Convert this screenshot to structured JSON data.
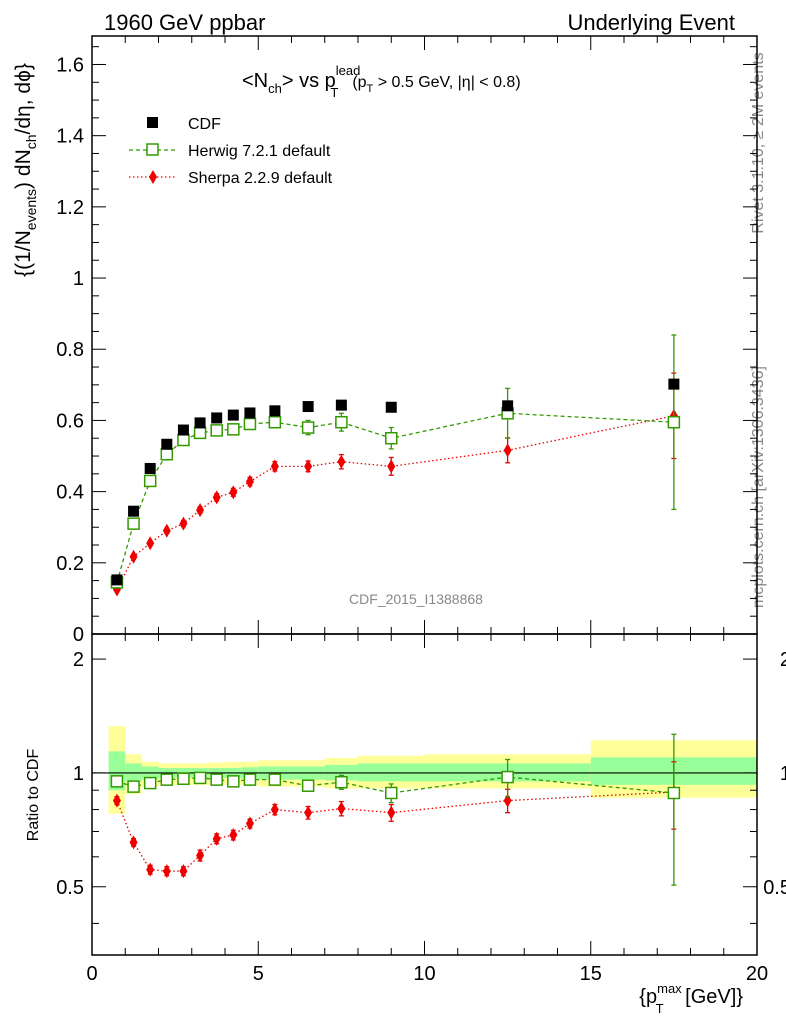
{
  "header": {
    "left": "1960 GeV ppbar",
    "right": "Underlying Event"
  },
  "side": {
    "top": "Rivet 3.1.10, ≥ 2M events",
    "bottom": "mcplots.cern.ch [arXiv:1306.3436]"
  },
  "watermark": "CDF_2015_I1388868",
  "main_title": {
    "part1": "<N",
    "sub1": "ch",
    "part2": "> vs p",
    "sup2": "lead",
    "sub2": "T",
    "paren_open": "(p",
    "sub3": "T",
    "paren_rest": " > 0.5 GeV, |η| < 0.8)"
  },
  "ylabel": {
    "p1": "{(1/N",
    "s1": "events",
    "p2": ") dN",
    "s2": "ch",
    "p3": "/dη, dϕ}"
  },
  "ratio_ylabel": "Ratio to CDF",
  "xlabel": {
    "p1": "{p",
    "sup": "max",
    "sub": "T",
    "p2": " [GeV]}"
  },
  "legend": [
    {
      "name": "CDF"
    },
    {
      "name": "Herwig 7.2.1 default"
    },
    {
      "name": "Sherpa 2.2.9 default"
    }
  ],
  "colors": {
    "cdf": "#000000",
    "herwig": "#339900",
    "sherpa": "#ee0000",
    "band_inner": "#99ff99",
    "band_outer": "#ffff99"
  },
  "chart_data": [
    {
      "type": "scatter",
      "xlim": [
        0,
        20
      ],
      "ylim": [
        0,
        1.68
      ],
      "yticks": [
        0,
        0.2,
        0.4,
        0.6,
        0.8,
        1,
        1.2,
        1.4,
        1.6
      ],
      "ytick_labels": [
        "0",
        "0.2",
        "0.4",
        "0.6",
        "0.8",
        "1",
        "1.2",
        "1.4",
        "1.6"
      ],
      "xticks": [
        0,
        5,
        10,
        15,
        20
      ],
      "xtick_labels": [
        "0",
        "5",
        "10",
        "15",
        "20"
      ],
      "x": [
        0.75,
        1.25,
        1.75,
        2.25,
        2.75,
        3.25,
        3.75,
        4.25,
        4.75,
        5.5,
        6.5,
        7.5,
        9,
        12.5,
        17.5
      ],
      "series": [
        {
          "name": "CDF",
          "y": [
            0.152,
            0.345,
            0.465,
            0.533,
            0.573,
            0.593,
            0.607,
            0.615,
            0.621,
            0.627,
            0.639,
            0.643,
            0.637,
            0.641,
            0.702
          ],
          "err": [
            0.005,
            0.005,
            0.005,
            0.005,
            0.005,
            0.005,
            0.005,
            0.005,
            0.005,
            0.005,
            0.005,
            0.006,
            0.006,
            0.008,
            0.012
          ]
        },
        {
          "name": "Herwig 7.2.1 default",
          "y": [
            0.145,
            0.31,
            0.43,
            0.505,
            0.545,
            0.565,
            0.572,
            0.575,
            0.59,
            0.595,
            0.58,
            0.595,
            0.55,
            0.62,
            0.595
          ],
          "err": [
            0.006,
            0.008,
            0.01,
            0.01,
            0.01,
            0.011,
            0.012,
            0.013,
            0.014,
            0.015,
            0.02,
            0.025,
            0.03,
            0.07,
            0.245
          ]
        },
        {
          "name": "Sherpa 2.2.9 default",
          "y": [
            0.125,
            0.217,
            0.255,
            0.29,
            0.31,
            0.348,
            0.384,
            0.398,
            0.428,
            0.471,
            0.471,
            0.484,
            0.471,
            0.516,
            0.613
          ],
          "err": [
            0.004,
            0.005,
            0.006,
            0.007,
            0.008,
            0.009,
            0.01,
            0.011,
            0.012,
            0.013,
            0.015,
            0.02,
            0.025,
            0.035,
            0.12
          ]
        }
      ]
    },
    {
      "type": "scatter",
      "ylabel": "Ratio to CDF",
      "xlim": [
        0,
        20
      ],
      "ylim": [
        0.33,
        2.33
      ],
      "log_y": true,
      "yticks": [
        0.5,
        1,
        2
      ],
      "ytick_labels": [
        "0.5",
        "1",
        "2"
      ],
      "bins": [
        [
          0.5,
          1.0
        ],
        [
          1.0,
          1.5
        ],
        [
          1.5,
          2.0
        ],
        [
          2.0,
          2.5
        ],
        [
          2.5,
          3.0
        ],
        [
          3.0,
          3.5
        ],
        [
          3.5,
          4.0
        ],
        [
          4.0,
          4.5
        ],
        [
          4.5,
          5.0
        ],
        [
          5.0,
          6.0
        ],
        [
          6.0,
          7.0
        ],
        [
          7.0,
          8.0
        ],
        [
          8.0,
          10.0
        ],
        [
          10.0,
          15.0
        ],
        [
          15.0,
          20.0
        ]
      ],
      "band_inner": [
        [
          0.9,
          1.14
        ],
        [
          0.95,
          1.06
        ],
        [
          0.96,
          1.04
        ],
        [
          0.97,
          1.03
        ],
        [
          0.97,
          1.03
        ],
        [
          0.97,
          1.03
        ],
        [
          0.97,
          1.03
        ],
        [
          0.97,
          1.03
        ],
        [
          0.965,
          1.035
        ],
        [
          0.96,
          1.04
        ],
        [
          0.96,
          1.04
        ],
        [
          0.955,
          1.05
        ],
        [
          0.95,
          1.06
        ],
        [
          0.95,
          1.06
        ],
        [
          0.93,
          1.1
        ]
      ],
      "band_outer": [
        [
          0.78,
          1.33
        ],
        [
          0.88,
          1.12
        ],
        [
          0.92,
          1.07
        ],
        [
          0.93,
          1.06
        ],
        [
          0.93,
          1.06
        ],
        [
          0.93,
          1.06
        ],
        [
          0.93,
          1.065
        ],
        [
          0.93,
          1.07
        ],
        [
          0.93,
          1.07
        ],
        [
          0.92,
          1.08
        ],
        [
          0.92,
          1.08
        ],
        [
          0.91,
          1.095
        ],
        [
          0.91,
          1.11
        ],
        [
          0.91,
          1.12
        ],
        [
          0.86,
          1.22
        ]
      ],
      "x": [
        0.75,
        1.25,
        1.75,
        2.25,
        2.75,
        3.25,
        3.75,
        4.25,
        4.75,
        5.5,
        6.5,
        7.5,
        9,
        12.5,
        17.5
      ],
      "series": [
        {
          "name": "Herwig 7.2.1 default",
          "y": [
            0.95,
            0.92,
            0.94,
            0.96,
            0.965,
            0.97,
            0.96,
            0.95,
            0.96,
            0.96,
            0.925,
            0.945,
            0.885,
            0.975,
            0.885
          ],
          "err": [
            0.02,
            0.02,
            0.02,
            0.02,
            0.02,
            0.02,
            0.02,
            0.02,
            0.025,
            0.025,
            0.03,
            0.04,
            0.05,
            0.11,
            0.38
          ]
        },
        {
          "name": "Sherpa 2.2.9 default",
          "y": [
            0.845,
            0.655,
            0.555,
            0.55,
            0.55,
            0.605,
            0.67,
            0.685,
            0.735,
            0.8,
            0.785,
            0.805,
            0.785,
            0.845,
            0.89
          ],
          "err": [
            0.02,
            0.015,
            0.015,
            0.015,
            0.015,
            0.02,
            0.02,
            0.02,
            0.02,
            0.025,
            0.03,
            0.035,
            0.04,
            0.06,
            0.18
          ]
        }
      ]
    }
  ]
}
